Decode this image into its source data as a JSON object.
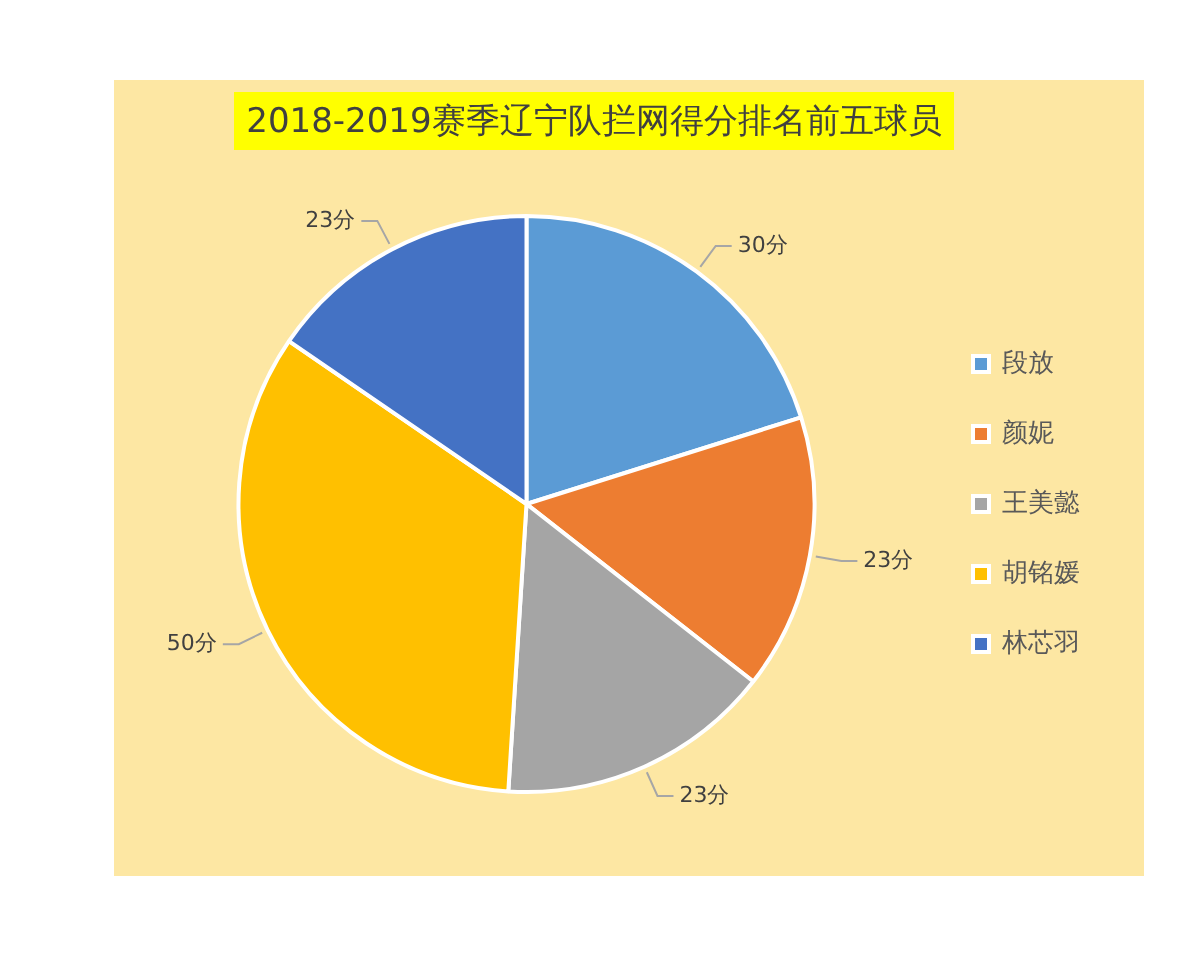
{
  "chart_data": {
    "type": "pie",
    "title": "2018-2019赛季辽宁队拦网得分排名前五球员",
    "categories": [
      "段放",
      "颜妮",
      "王美懿",
      "胡铭媛",
      "林芯羽"
    ],
    "values": [
      30,
      23,
      23,
      50,
      23
    ],
    "colors": [
      "#5b9bd5",
      "#ed7d31",
      "#a5a5a5",
      "#ffc000",
      "#4472c4"
    ],
    "value_labels": [
      "30分",
      "23分",
      "23分",
      "50分",
      "23分"
    ],
    "legend": "right"
  }
}
